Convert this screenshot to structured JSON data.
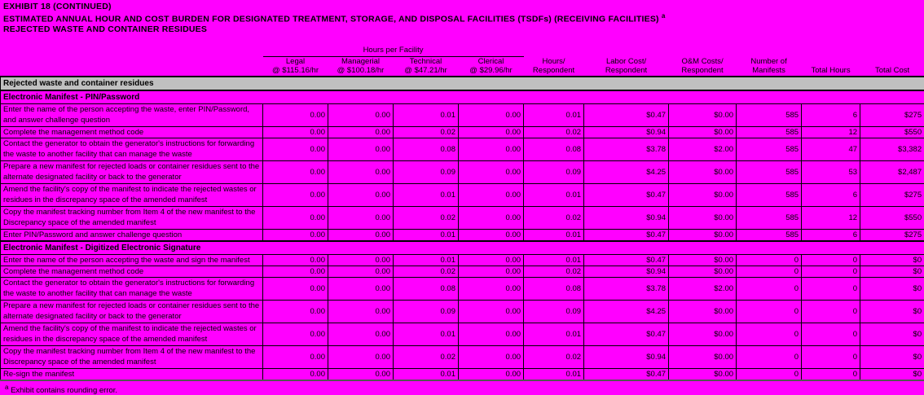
{
  "title": {
    "line1": "EXHIBIT 18 (CONTINUED)",
    "line2": "ESTIMATED ANNUAL HOUR AND COST BURDEN FOR DESIGNATED TREATMENT, STORAGE, AND DISPOSAL FACILITIES (TSDFs) (RECEIVING FACILITIES)",
    "line2_superscript": "a",
    "line3": "REJECTED WASTE AND CONTAINER RESIDUES"
  },
  "table": {
    "group_header": "Hours per Facility",
    "columns": [
      {
        "line1": "Legal",
        "line2": "@ $115.16/hr"
      },
      {
        "line1": "Managerial",
        "line2": "@ $100.18/hr"
      },
      {
        "line1": "Technical",
        "line2": "@ $47.21/hr"
      },
      {
        "line1": "Clerical",
        "line2": "@ $29.96/hr"
      },
      {
        "line1": "Hours/",
        "line2": "Respondent"
      },
      {
        "line1": "Labor Cost/",
        "line2": "Respondent"
      },
      {
        "line1": "O&M Costs/",
        "line2": "Respondent"
      },
      {
        "line1": "Number of",
        "line2": "Manifests"
      },
      {
        "line1": "",
        "line2": "Total Hours"
      },
      {
        "line1": "",
        "line2": "Total Cost"
      }
    ],
    "banner": "Rejected waste and container residues",
    "sections": [
      {
        "header": "Electronic Manifest - PIN/Password",
        "rows": [
          {
            "lines": 2,
            "label": "Enter the name of the person accepting the waste, enter PIN/Password, and answer challenge question",
            "values": [
              "0.00",
              "0.00",
              "0.01",
              "0.00",
              "0.01",
              "$0.47",
              "$0.00",
              "585",
              "6",
              "$275"
            ]
          },
          {
            "lines": 1,
            "label": "Complete the management method code",
            "values": [
              "0.00",
              "0.00",
              "0.02",
              "0.00",
              "0.02",
              "$0.94",
              "$0.00",
              "585",
              "12",
              "$550"
            ]
          },
          {
            "lines": 2,
            "label": "Contact the generator to obtain the generator's instructions for forwarding the waste to another facility that can manage the waste",
            "values": [
              "0.00",
              "0.00",
              "0.08",
              "0.00",
              "0.08",
              "$3.78",
              "$2.00",
              "585",
              "47",
              "$3,382"
            ]
          },
          {
            "lines": 2,
            "label": "Prepare a new manifest for rejected loads or container residues sent to the alternate designated facility or back to the generator",
            "values": [
              "0.00",
              "0.00",
              "0.09",
              "0.00",
              "0.09",
              "$4.25",
              "$0.00",
              "585",
              "53",
              "$2,487"
            ]
          },
          {
            "lines": 2,
            "label": "Amend the facility's copy of the manifest to indicate the rejected wastes or residues in the discrepancy space of the amended manifest",
            "values": [
              "0.00",
              "0.00",
              "0.01",
              "0.00",
              "0.01",
              "$0.47",
              "$0.00",
              "585",
              "6",
              "$275"
            ]
          },
          {
            "lines": 2,
            "label": "Copy the manifest tracking number from Item 4 of the new manifest to the Discrepancy space of the amended manifest",
            "values": [
              "0.00",
              "0.00",
              "0.02",
              "0.00",
              "0.02",
              "$0.94",
              "$0.00",
              "585",
              "12",
              "$550"
            ]
          },
          {
            "lines": 1,
            "label": "Enter PIN/Password and answer challenge question",
            "values": [
              "0.00",
              "0.00",
              "0.01",
              "0.00",
              "0.01",
              "$0.47",
              "$0.00",
              "585",
              "6",
              "$275"
            ]
          }
        ]
      },
      {
        "header": "Electronic Manifest - Digitized Electronic Signature",
        "rows": [
          {
            "lines": 1,
            "label": "Enter the name of the person accepting the waste and sign the manifest",
            "values": [
              "0.00",
              "0.00",
              "0.01",
              "0.00",
              "0.01",
              "$0.47",
              "$0.00",
              "0",
              "0",
              "$0"
            ]
          },
          {
            "lines": 1,
            "label": "Complete the management method code",
            "values": [
              "0.00",
              "0.00",
              "0.02",
              "0.00",
              "0.02",
              "$0.94",
              "$0.00",
              "0",
              "0",
              "$0"
            ]
          },
          {
            "lines": 2,
            "label": "Contact the generator to obtain the generator's instructions for forwarding the waste to another facility that can manage the waste",
            "values": [
              "0.00",
              "0.00",
              "0.08",
              "0.00",
              "0.08",
              "$3.78",
              "$2.00",
              "0",
              "0",
              "$0"
            ]
          },
          {
            "lines": 2,
            "label": "Prepare a new manifest for rejected loads or container residues sent to the alternate designated facility or back to the generator",
            "values": [
              "0.00",
              "0.00",
              "0.09",
              "0.00",
              "0.09",
              "$4.25",
              "$0.00",
              "0",
              "0",
              "$0"
            ]
          },
          {
            "lines": 2,
            "label": "Amend the facility's copy of the manifest to indicate the rejected wastes or residues in the discrepancy space of the amended manifest",
            "values": [
              "0.00",
              "0.00",
              "0.01",
              "0.00",
              "0.01",
              "$0.47",
              "$0.00",
              "0",
              "0",
              "$0"
            ]
          },
          {
            "lines": 2,
            "label": "Copy the manifest tracking number from Item 4 of the new manifest to the Discrepancy space of the amended manifest",
            "values": [
              "0.00",
              "0.00",
              "0.02",
              "0.00",
              "0.02",
              "$0.94",
              "$0.00",
              "0",
              "0",
              "$0"
            ]
          },
          {
            "lines": 1,
            "label": "Re-sign the manifest",
            "values": [
              "0.00",
              "0.00",
              "0.01",
              "0.00",
              "0.01",
              "$0.47",
              "$0.00",
              "0",
              "0",
              "$0"
            ]
          }
        ]
      }
    ]
  },
  "footnote": {
    "marker": "a",
    "text": " Exhibit contains rounding error."
  },
  "colors": {
    "background": "#FF00FF",
    "banner_bg": "#C0C0C0",
    "border": "#000000"
  }
}
